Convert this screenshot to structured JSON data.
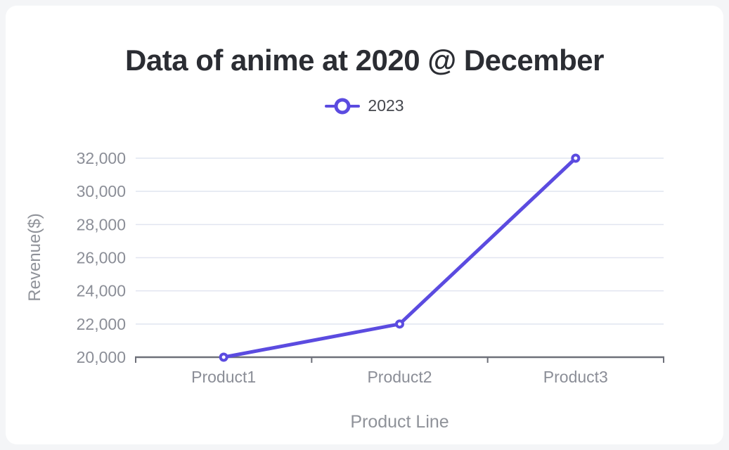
{
  "title": "Data of anime at 2020 @ December",
  "legend": {
    "items": [
      {
        "label": "2023",
        "color": "#5b4be0"
      }
    ]
  },
  "chart_data": {
    "type": "line",
    "title": "Data of anime at 2020 @ December",
    "categories": [
      "Product1",
      "Product2",
      "Product3"
    ],
    "series": [
      {
        "name": "2023",
        "values": [
          20000,
          22000,
          32000
        ],
        "color": "#5b4be0"
      }
    ],
    "xlabel": "Product Line",
    "ylabel": "Revenue($)",
    "ylim": [
      20000,
      32000
    ],
    "ytick_step": 2000,
    "ytick_labels": [
      "20,000",
      "22,000",
      "24,000",
      "26,000",
      "28,000",
      "30,000",
      "32,000"
    ],
    "grid": true,
    "legend_position": "top",
    "colors": {
      "grid_line": "#e1e5f0",
      "axis_line": "#6e7079",
      "tick_label": "#8b8e97",
      "axis_name": "#8f9299",
      "title": "#2b2d33",
      "marker_fill": "#ffffff"
    }
  }
}
